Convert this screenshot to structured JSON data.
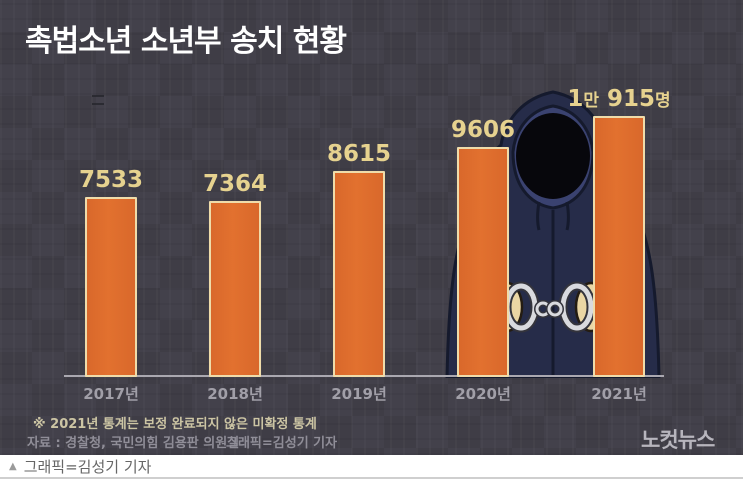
{
  "poster": {
    "footnote": "※ 2021년 통계는 보정 완료되지 않은 미확정 통계",
    "source": "자료 : 경찰청, 국민의힘 김용판 의원실",
    "credit": "그래픽=김성기 기자",
    "logo": "노컷뉴스"
  },
  "caption": {
    "marker": "▲",
    "text": "그래픽=김성기 기자"
  },
  "chart_data": {
    "type": "bar",
    "title": "촉법소년 소년부 송치 현황",
    "categories": [
      "2017년",
      "2018년",
      "2019년",
      "2020년",
      "2021년"
    ],
    "values": [
      7533,
      7364,
      8615,
      9606,
      10915
    ],
    "value_labels": [
      "7533",
      "7364",
      "8615",
      "9606",
      "1만 915명"
    ],
    "unit": "명",
    "xlabel": "",
    "ylabel": "",
    "ylim": [
      0,
      10915
    ],
    "grid": false,
    "legend": false,
    "bar_color": "#e2712f",
    "bar_color_edge": "#d9682b",
    "bar_border_color": "#efdcaa",
    "value_label_color": "#e6d28f",
    "background_color": "#413f49",
    "axis_color": "#aaa8b0"
  },
  "illustration": {
    "name": "hooded-figure-with-handcuffs"
  }
}
